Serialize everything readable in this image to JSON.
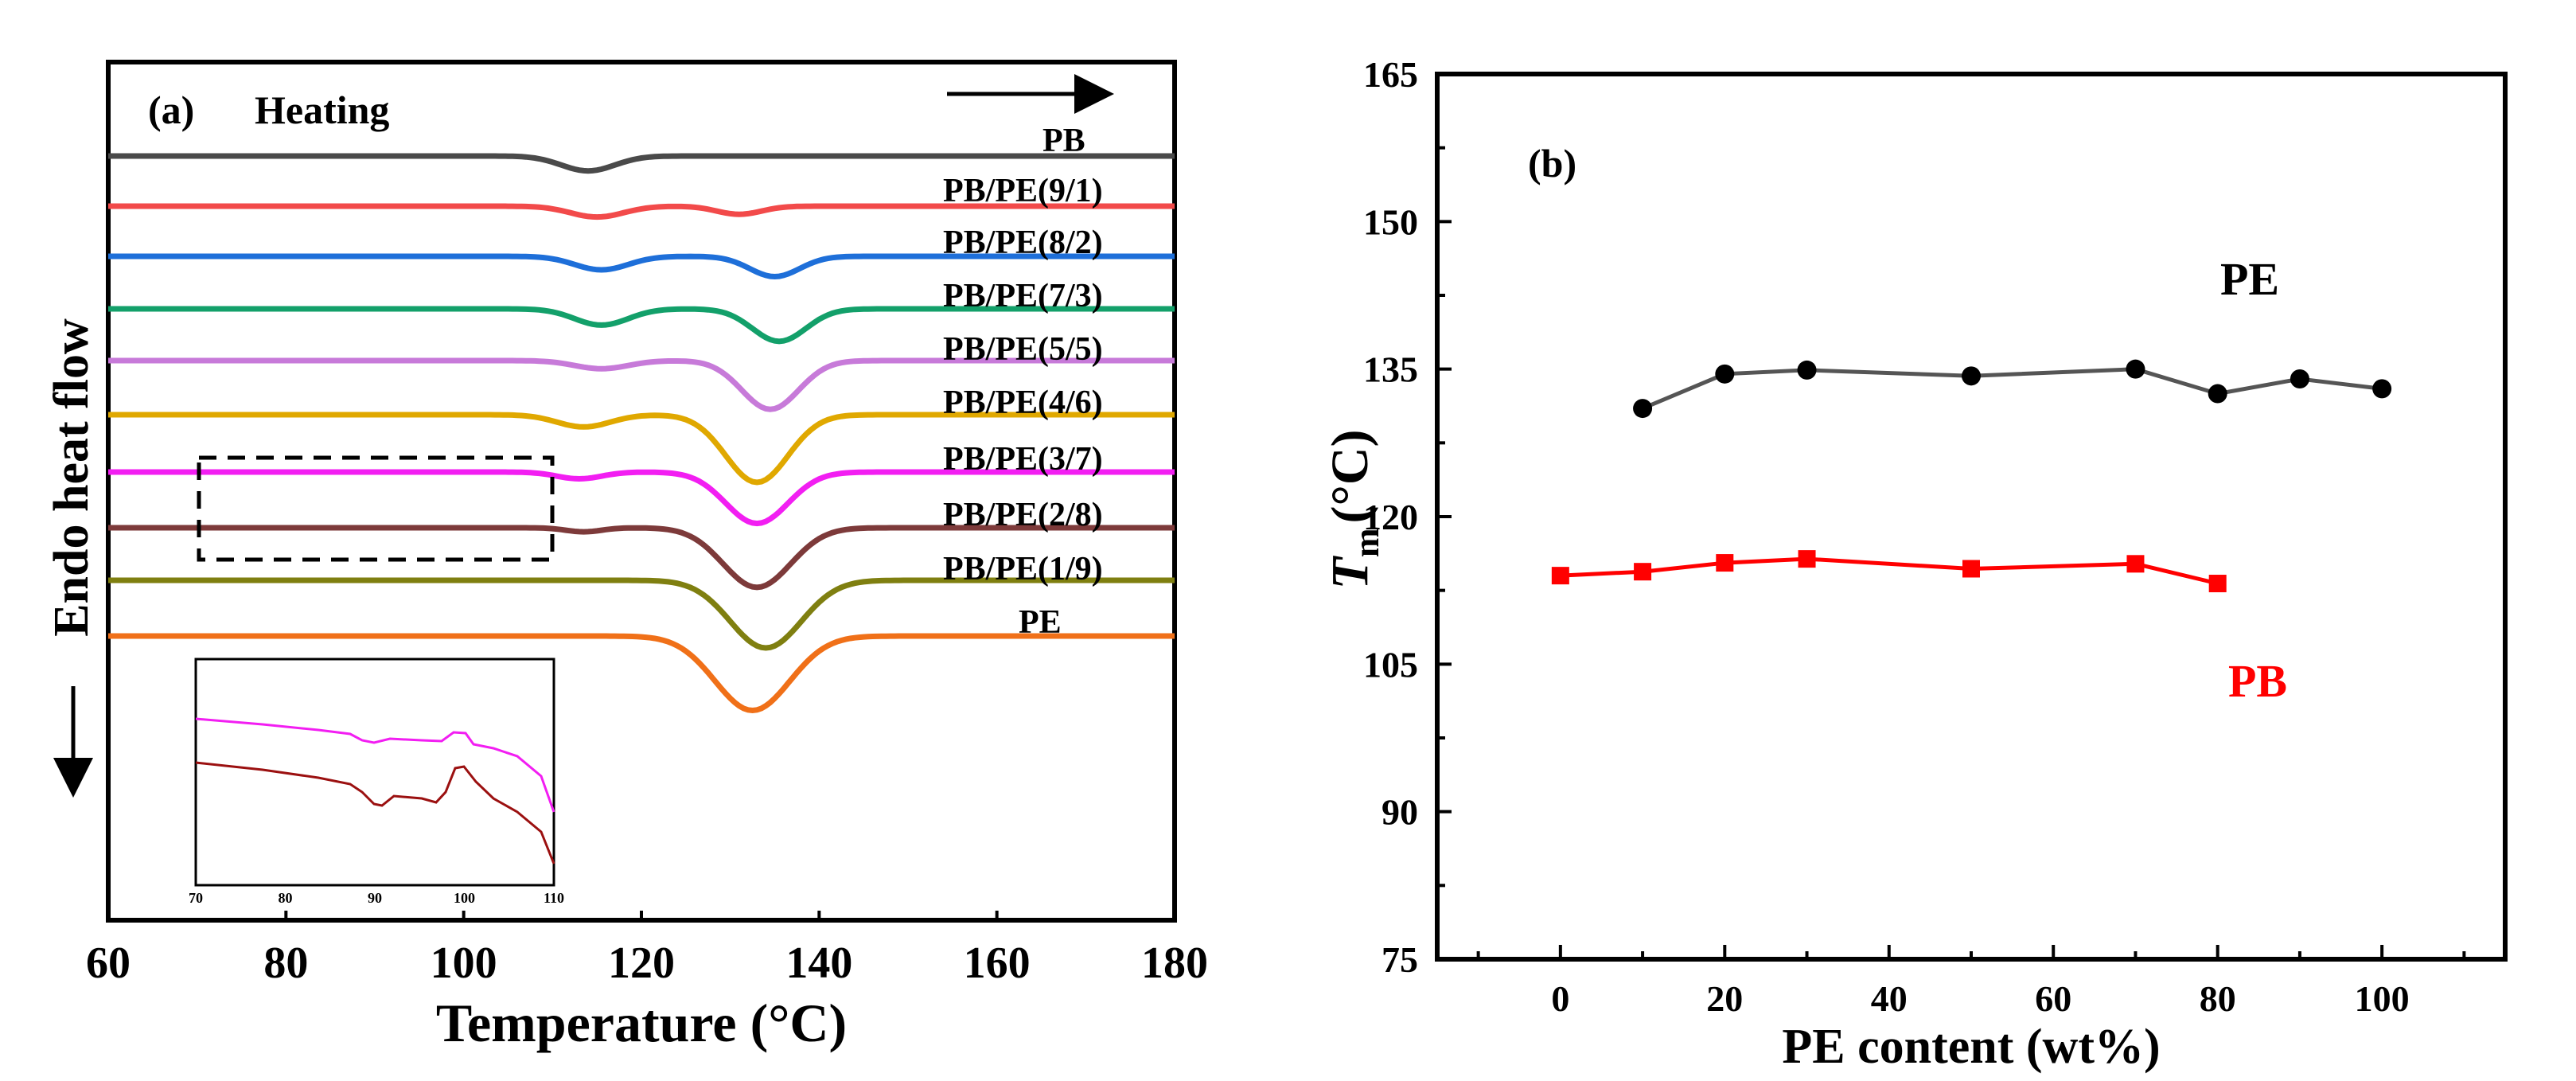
{
  "chart_data": [
    {
      "panel": "(a)",
      "type": "line",
      "mode_label": "Heating",
      "xlabel": "Temperature (°C)",
      "ylabel": "Endo heat flow",
      "xlim": [
        60,
        180
      ],
      "xticks": [
        "60",
        "80",
        "100",
        "120",
        "140",
        "160",
        "180"
      ],
      "series": [
        {
          "name": "PB",
          "color": "#4a4a4a",
          "baseline": 10,
          "peaks": [
            {
              "t": 114,
              "depth": 1.1,
              "w": 3.0
            }
          ]
        },
        {
          "name": "PB/PE(9/1)",
          "color": "#f24a4a",
          "baseline": 10,
          "peaks": [
            {
              "t": 115,
              "depth": 0.8,
              "w": 3.0
            },
            {
              "t": 131,
              "depth": 0.6,
              "w": 2.5
            }
          ]
        },
        {
          "name": "PB/PE(8/2)",
          "color": "#1e6fd9",
          "baseline": 10,
          "peaks": [
            {
              "t": 115.5,
              "depth": 1.0,
              "w": 3.0
            },
            {
              "t": 135,
              "depth": 1.5,
              "w": 2.8
            }
          ]
        },
        {
          "name": "PB/PE(7/3)",
          "color": "#13a06a",
          "baseline": 10,
          "peaks": [
            {
              "t": 115.5,
              "depth": 1.2,
              "w": 3.0
            },
            {
              "t": 135.5,
              "depth": 2.4,
              "w": 3.0
            }
          ]
        },
        {
          "name": "PB/PE(5/5)",
          "color": "#c77ad9",
          "baseline": 10,
          "peaks": [
            {
              "t": 115.5,
              "depth": 0.6,
              "w": 3.0
            },
            {
              "t": 134.5,
              "depth": 3.6,
              "w": 3.2
            }
          ]
        },
        {
          "name": "PB/PE(4/6)",
          "color": "#e0a800",
          "baseline": 10,
          "peaks": [
            {
              "t": 113.5,
              "depth": 0.9,
              "w": 3.0
            },
            {
              "t": 133,
              "depth": 5.0,
              "w": 3.5
            }
          ]
        },
        {
          "name": "PB/PE(3/7)",
          "color": "#f21ef2",
          "baseline": 10,
          "peaks": [
            {
              "t": 113,
              "depth": 0.5,
              "w": 2.5
            },
            {
              "t": 133,
              "depth": 3.8,
              "w": 3.5
            }
          ]
        },
        {
          "name": "PB/PE(2/8)",
          "color": "#7d3a3a",
          "baseline": 10,
          "peaks": [
            {
              "t": 113.5,
              "depth": 0.3,
              "w": 2.0
            },
            {
              "t": 133,
              "depth": 4.4,
              "w": 3.8
            }
          ]
        },
        {
          "name": "PB/PE(1/9)",
          "color": "#7f7f10",
          "baseline": 10,
          "peaks": [
            {
              "t": 134,
              "depth": 5.0,
              "w": 4.0
            }
          ]
        },
        {
          "name": "PE",
          "color": "#f07018",
          "baseline": 10,
          "peaks": [
            {
              "t": 132.5,
              "depth": 5.5,
              "w": 4.2
            }
          ]
        }
      ],
      "inset": {
        "xlim": [
          70,
          110
        ],
        "xticks": [
          "70",
          "80",
          "90",
          "100",
          "110"
        ]
      }
    },
    {
      "panel": "(b)",
      "type": "line",
      "xlabel": "PE content (wt%)",
      "ylabel_main": "T",
      "ylabel_sub": "m",
      "ylabel_unit": "(°C)",
      "xlim": [
        -15,
        115
      ],
      "ylim": [
        75,
        165
      ],
      "xticks": [
        "0",
        "20",
        "40",
        "60",
        "80",
        "100"
      ],
      "yticks": [
        "75",
        "90",
        "105",
        "120",
        "135",
        "150",
        "165"
      ],
      "series": [
        {
          "name": "PE",
          "color": "#000000",
          "line_color": "#555555",
          "marker": "circle",
          "x": [
            10,
            20,
            30,
            50,
            70,
            80,
            90,
            100
          ],
          "y": [
            131,
            134.5,
            134.9,
            134.3,
            135.0,
            132.5,
            134.0,
            133.0
          ]
        },
        {
          "name": "PB",
          "color": "#ff0000",
          "line_color": "#ff0000",
          "marker": "square",
          "x": [
            0,
            10,
            20,
            30,
            50,
            70,
            80
          ],
          "y": [
            114.0,
            114.4,
            115.3,
            115.7,
            114.7,
            115.2,
            113.2
          ]
        }
      ]
    }
  ]
}
